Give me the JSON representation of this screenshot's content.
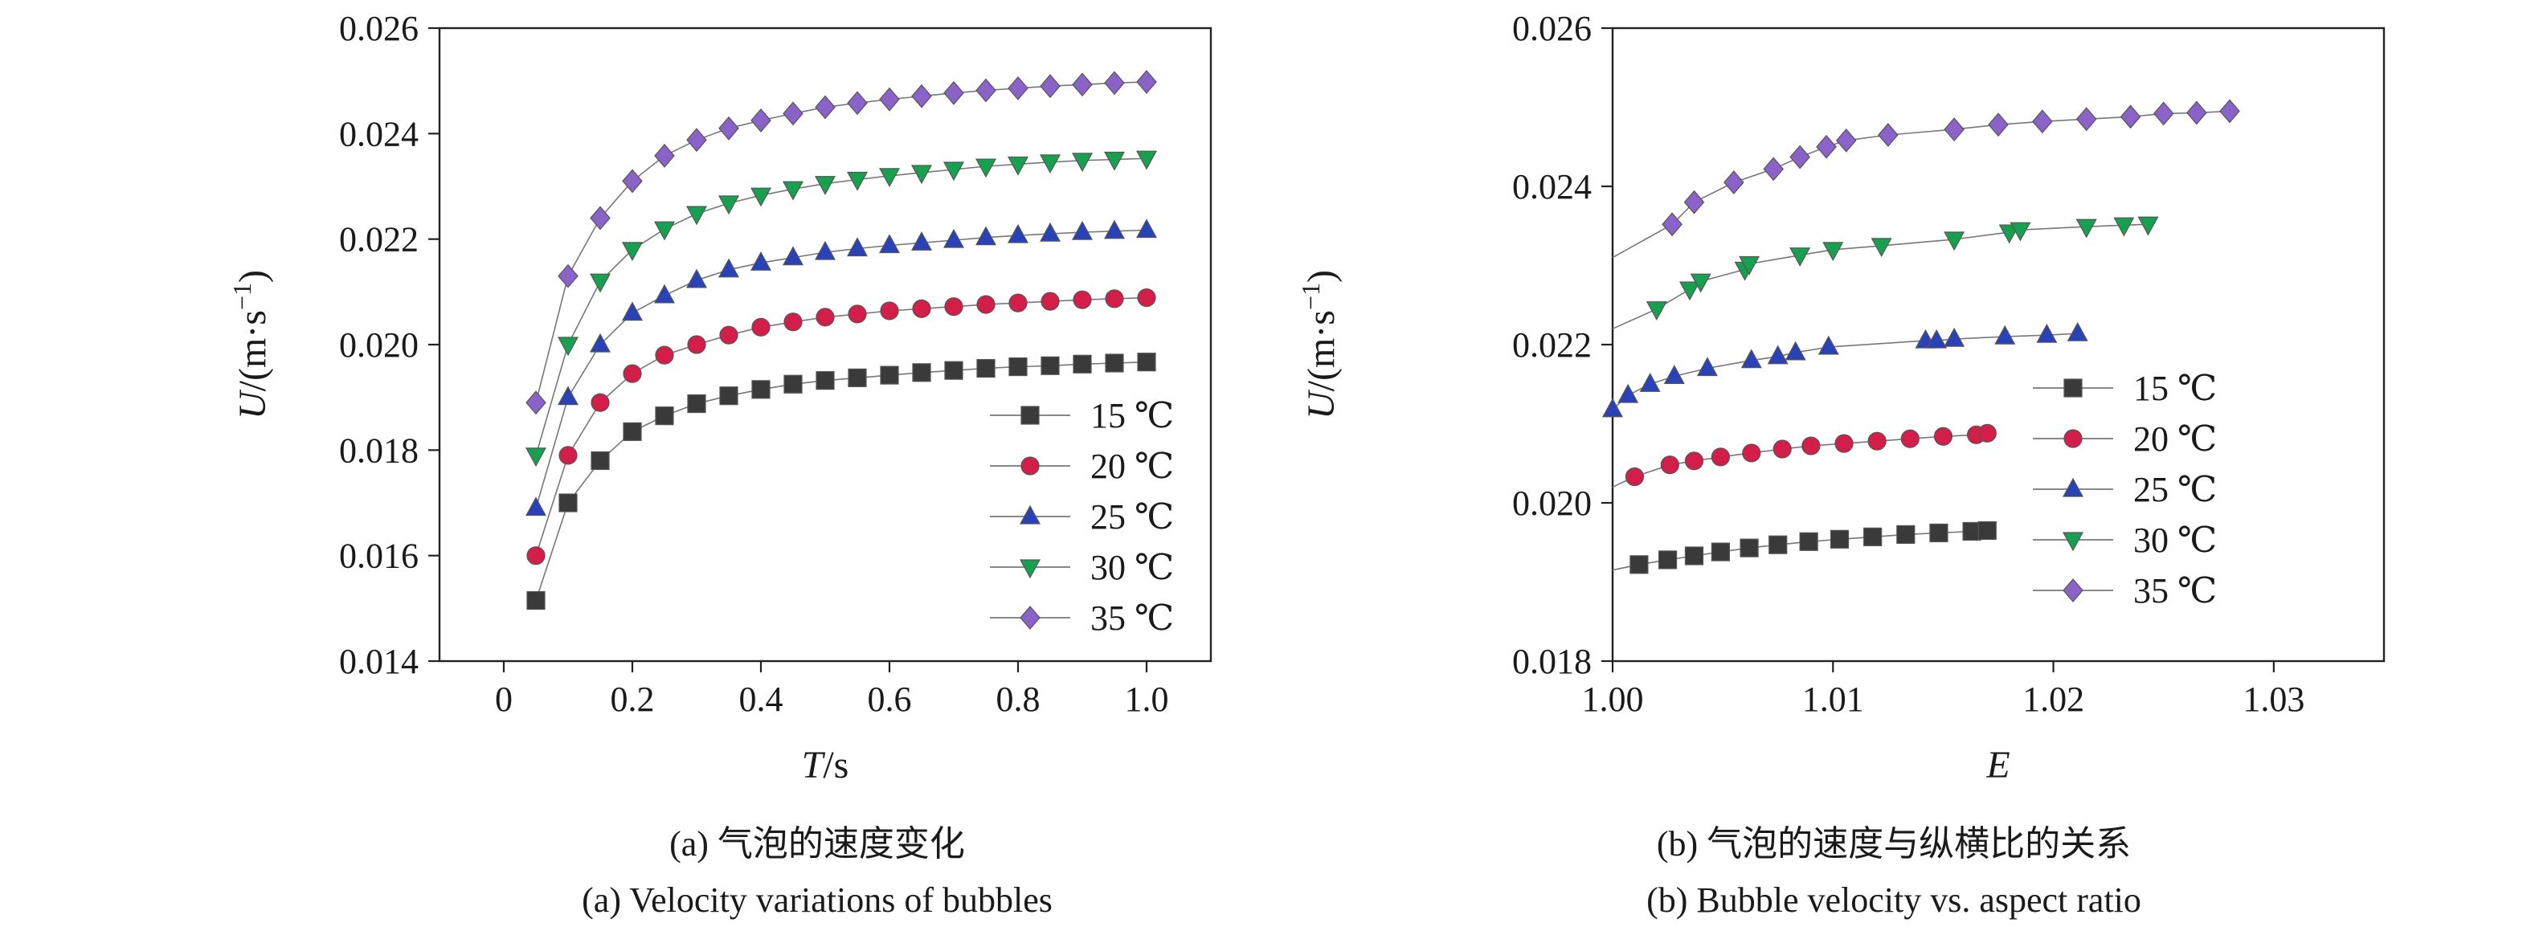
{
  "chart_data": [
    {
      "type": "line",
      "panel": "a",
      "xlabel": {
        "var": "T",
        "unit": "/s"
      },
      "ylabel": {
        "var": "U",
        "unit": "/(m·s",
        "sup": "−1",
        "close": ")"
      },
      "xlim": [
        -0.1,
        1.1
      ],
      "ylim": [
        0.014,
        0.026
      ],
      "xticks": [
        0,
        0.2,
        0.4,
        0.6,
        0.8,
        1.0
      ],
      "xtick_labels": [
        "0",
        "0.2",
        "0.4",
        "0.6",
        "0.8",
        "1.0"
      ],
      "yticks": [
        0.014,
        0.016,
        0.018,
        0.02,
        0.022,
        0.024,
        0.026
      ],
      "ytick_labels": [
        "0.014",
        "0.016",
        "0.018",
        "0.020",
        "0.022",
        "0.024",
        "0.026"
      ],
      "grid": false,
      "legend_position": "bottom-right",
      "x": [
        0.05,
        0.1,
        0.15,
        0.2,
        0.25,
        0.3,
        0.35,
        0.4,
        0.45,
        0.5,
        0.55,
        0.6,
        0.65,
        0.7,
        0.75,
        0.8,
        0.85,
        0.9,
        0.95,
        1.0
      ],
      "series": [
        {
          "name": "15 ℃",
          "color": "#3a3a3a",
          "marker": "square",
          "values": [
            0.01515,
            0.017,
            0.0178,
            0.01835,
            0.01865,
            0.01888,
            0.01903,
            0.01915,
            0.01925,
            0.01932,
            0.01937,
            0.01942,
            0.01947,
            0.01951,
            0.01955,
            0.01958,
            0.0196,
            0.01963,
            0.01965,
            0.01967
          ]
        },
        {
          "name": "20 ℃",
          "color": "#d21e48",
          "marker": "circle",
          "values": [
            0.016,
            0.0179,
            0.0189,
            0.01945,
            0.0198,
            0.02,
            0.02018,
            0.02033,
            0.02043,
            0.02052,
            0.02058,
            0.02064,
            0.02068,
            0.02072,
            0.02076,
            0.02079,
            0.02082,
            0.02085,
            0.02087,
            0.02089
          ]
        },
        {
          "name": "25 ℃",
          "color": "#2a42b8",
          "marker": "triangle-up",
          "values": [
            0.0169,
            0.019,
            0.02,
            0.0206,
            0.02093,
            0.02122,
            0.02142,
            0.02155,
            0.02165,
            0.02175,
            0.02182,
            0.02188,
            0.02193,
            0.02198,
            0.02203,
            0.02207,
            0.0221,
            0.02213,
            0.02215,
            0.02217
          ]
        },
        {
          "name": "30 ℃",
          "color": "#16a04f",
          "marker": "triangle-down",
          "values": [
            0.0179,
            0.02,
            0.0212,
            0.0218,
            0.02219,
            0.02248,
            0.02268,
            0.02283,
            0.02295,
            0.02305,
            0.02313,
            0.0232,
            0.02326,
            0.02332,
            0.02338,
            0.02342,
            0.02346,
            0.02349,
            0.02351,
            0.02353
          ]
        },
        {
          "name": "35 ℃",
          "color": "#8a62c8",
          "marker": "diamond",
          "values": [
            0.0189,
            0.0213,
            0.0224,
            0.0231,
            0.02358,
            0.02388,
            0.0241,
            0.02425,
            0.02438,
            0.0245,
            0.02458,
            0.02465,
            0.02471,
            0.02477,
            0.02482,
            0.02486,
            0.0249,
            0.02493,
            0.02496,
            0.02498
          ]
        }
      ]
    },
    {
      "type": "line",
      "panel": "b",
      "xlabel": {
        "var": "E",
        "unit": ""
      },
      "ylabel": {
        "var": "U",
        "unit": "/(m·s",
        "sup": "−1",
        "close": ")"
      },
      "xlim": [
        1.0,
        1.035
      ],
      "ylim": [
        0.018,
        0.026
      ],
      "xticks": [
        1.0,
        1.01,
        1.02,
        1.03
      ],
      "xtick_labels": [
        "1.00",
        "1.01",
        "1.02",
        "1.03"
      ],
      "yticks": [
        0.018,
        0.02,
        0.022,
        0.024,
        0.026
      ],
      "ytick_labels": [
        "0.018",
        "0.020",
        "0.022",
        "0.024",
        "0.026"
      ],
      "grid": false,
      "legend_position": "right",
      "series": [
        {
          "name": "15 ℃",
          "color": "#3a3a3a",
          "marker": "square",
          "x": [
            1.0,
            1.0012,
            1.0025,
            1.0037,
            1.0049,
            1.0062,
            1.0075,
            1.0089,
            1.0103,
            1.0118,
            1.0133,
            1.0148,
            1.0163,
            1.017
          ],
          "values": [
            0.01915,
            0.01922,
            0.01928,
            0.01933,
            0.01938,
            0.01943,
            0.01947,
            0.01951,
            0.01954,
            0.01957,
            0.0196,
            0.01962,
            0.01964,
            0.01965
          ],
          "markers_from": 1
        },
        {
          "name": "20 ℃",
          "color": "#d21e48",
          "marker": "circle",
          "x": [
            1.0,
            1.001,
            1.0026,
            1.0037,
            1.0049,
            1.0063,
            1.0077,
            1.009,
            1.0105,
            1.012,
            1.0135,
            1.015,
            1.0165,
            1.017
          ],
          "values": [
            0.0202,
            0.02033,
            0.02048,
            0.02053,
            0.02058,
            0.02063,
            0.02068,
            0.02072,
            0.02075,
            0.02078,
            0.02081,
            0.02084,
            0.02086,
            0.02088
          ],
          "markers_from": 1
        },
        {
          "name": "25 ℃",
          "color": "#2a42b8",
          "marker": "triangle-up",
          "x": [
            1.0,
            1.0007,
            1.0017,
            1.0028,
            1.0043,
            1.0063,
            1.0075,
            1.0083,
            1.0098,
            1.0142,
            1.0147,
            1.0155,
            1.0178,
            1.0197,
            1.0211
          ],
          "values": [
            0.02118,
            0.02136,
            0.0215,
            0.0216,
            0.0217,
            0.0218,
            0.02185,
            0.0219,
            0.02197,
            0.02205,
            0.02205,
            0.02207,
            0.0221,
            0.02212,
            0.02214
          ],
          "markers_from": 0
        },
        {
          "name": "30 ℃",
          "color": "#16a04f",
          "marker": "triangle-down",
          "x": [
            1.0,
            1.002,
            1.0035,
            1.004,
            1.006,
            1.0062,
            1.0085,
            1.01,
            1.0122,
            1.0155,
            1.018,
            1.0185,
            1.0215,
            1.0232,
            1.0243
          ],
          "values": [
            0.0222,
            0.02245,
            0.0227,
            0.0228,
            0.02295,
            0.02302,
            0.02313,
            0.0232,
            0.02325,
            0.02333,
            0.02342,
            0.02345,
            0.02349,
            0.02351,
            0.02352
          ],
          "markers_from": 1
        },
        {
          "name": "35 ℃",
          "color": "#8a62c8",
          "marker": "diamond",
          "x": [
            1.0,
            1.0027,
            1.0037,
            1.0055,
            1.0073,
            1.0085,
            1.0097,
            1.0106,
            1.0125,
            1.0155,
            1.0175,
            1.0195,
            1.0215,
            1.0235,
            1.025,
            1.0265,
            1.028
          ],
          "values": [
            0.0231,
            0.02352,
            0.0238,
            0.02405,
            0.02422,
            0.02437,
            0.0245,
            0.02458,
            0.02465,
            0.02472,
            0.02478,
            0.02482,
            0.02485,
            0.02488,
            0.02492,
            0.02493,
            0.02495
          ],
          "markers_from": 1
        }
      ]
    }
  ],
  "captions": {
    "a_zh": "(a) 气泡的速度变化",
    "a_en": "(a) Velocity variations of bubbles",
    "b_zh": "(b) 气泡的速度与纵横比的关系",
    "b_en": "(b) Bubble velocity vs. aspect ratio"
  }
}
